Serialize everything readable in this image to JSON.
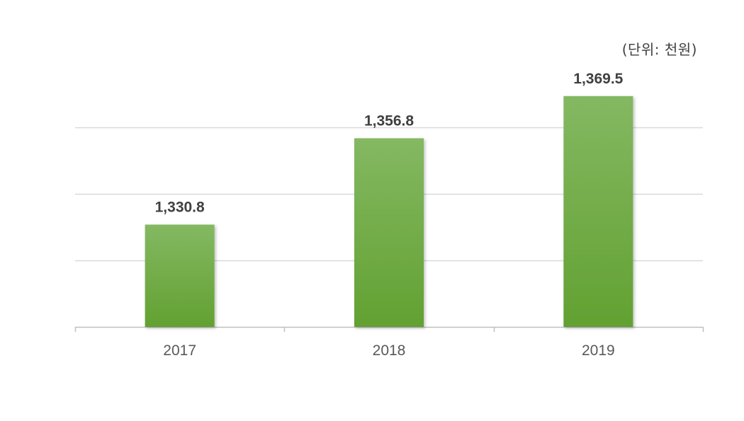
{
  "chart_data": {
    "type": "bar",
    "unit_note": "(단위: 천원)",
    "categories": [
      "2017",
      "2018",
      "2019"
    ],
    "values": [
      1330.8,
      1356.8,
      1369.5
    ],
    "value_labels": [
      "1,330.8",
      "1,356.8",
      "1,369.5"
    ],
    "ylim": [
      1300,
      1375
    ],
    "y_gridlines": [
      1320,
      1340,
      1360
    ],
    "grid": true,
    "legend": "none",
    "bar_color_top": "#84b862",
    "bar_color_bottom": "#62a131",
    "grid_color": "#d9d9d9",
    "axis_color": "#bfbfbf",
    "label_color": "#404040"
  }
}
